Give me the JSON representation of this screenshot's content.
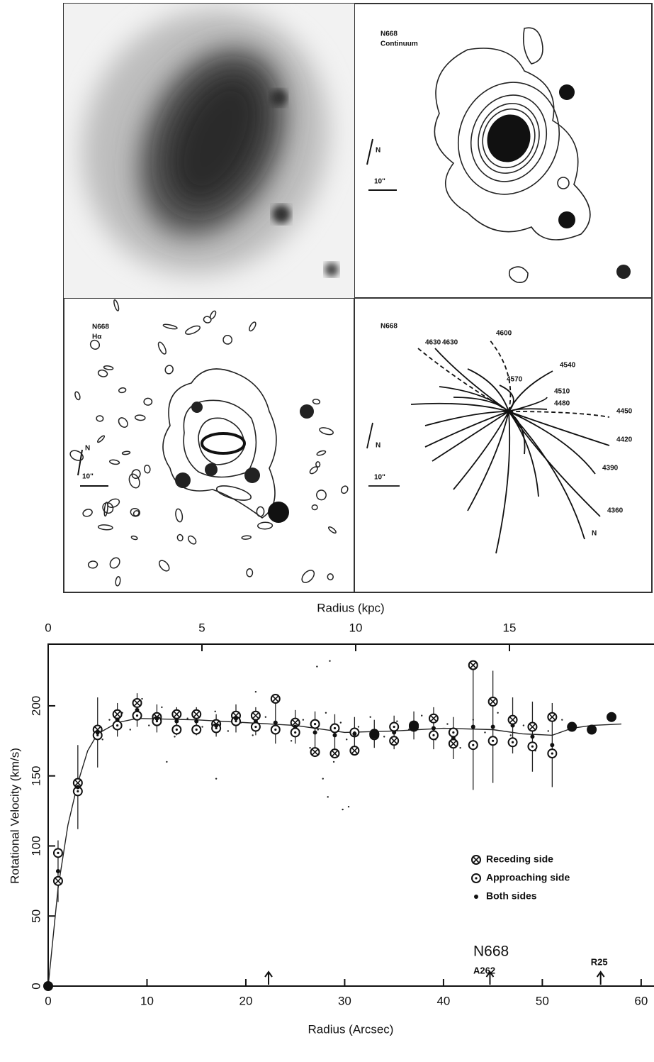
{
  "panels": [
    {
      "labels": []
    },
    {
      "labels": [
        "N668",
        "Continuum",
        "N",
        "10\""
      ]
    },
    {
      "labels": [
        "N668",
        "Hα",
        "N",
        "10\""
      ]
    },
    {
      "labels": [
        "N668",
        "4630",
        "4600",
        "4630",
        "4570",
        "4540",
        "4510",
        "4480",
        "4450",
        "4420",
        "4390",
        "4360",
        "N",
        "10\""
      ]
    }
  ],
  "chart_data": {
    "type": "scatter",
    "xlabel": "Radius (Arcsec)",
    "x2label": "Radius (kpc)",
    "ylabel": "Rotational Velocity (km/s)",
    "xlim": [
      0,
      61.3
    ],
    "xticks": [
      0,
      10,
      20,
      30,
      40,
      50,
      60
    ],
    "x2lim": [
      0,
      19.7
    ],
    "x2ticks": [
      0,
      5,
      10,
      15
    ],
    "ylim": [
      0,
      244
    ],
    "yticks": [
      0,
      50,
      100,
      150,
      200
    ],
    "annotations": [
      "N668",
      "A262",
      "R25"
    ],
    "markers_x": [
      22.3,
      44.7,
      55.9
    ],
    "series": [
      {
        "name": "Receding side",
        "x": [
          1,
          3,
          5,
          7,
          9,
          11,
          13,
          15,
          17,
          19,
          21,
          23,
          25,
          27,
          29,
          31,
          33,
          35,
          37,
          39,
          41,
          43,
          45,
          47,
          49,
          51
        ],
        "values": [
          75,
          145,
          183,
          194,
          202,
          192,
          194,
          194,
          187,
          193,
          193,
          205,
          188,
          167,
          166,
          168,
          180,
          175,
          186,
          191,
          173,
          229,
          203,
          190,
          185,
          192
        ]
      },
      {
        "name": "Approaching side",
        "x": [
          1,
          3,
          5,
          7,
          9,
          11,
          13,
          15,
          17,
          19,
          21,
          23,
          25,
          27,
          29,
          31,
          33,
          35,
          37,
          39,
          41,
          43,
          45,
          47,
          49,
          51
        ],
        "values": [
          95,
          139,
          179,
          186,
          193,
          189,
          183,
          183,
          184,
          189,
          185,
          183,
          181,
          187,
          184,
          181,
          179,
          185,
          185,
          179,
          181,
          172,
          175,
          174,
          171,
          166
        ]
      },
      {
        "name": "Both sides",
        "x": [
          1,
          3,
          5,
          7,
          9,
          11,
          13,
          15,
          17,
          19,
          21,
          23,
          25,
          27,
          29,
          31,
          33,
          35,
          37,
          39,
          41,
          43,
          45,
          47,
          49,
          51
        ],
        "values": [
          82,
          142,
          181,
          190,
          197,
          191,
          189,
          189,
          186,
          191,
          189,
          188,
          185,
          181,
          179,
          180,
          180,
          181,
          186,
          184,
          177,
          185,
          185,
          186,
          178,
          172
        ],
        "errors": [
          22,
          30,
          25,
          12,
          12,
          10,
          10,
          10,
          8,
          10,
          10,
          15,
          12,
          15,
          15,
          12,
          10,
          12,
          10,
          15,
          15,
          45,
          40,
          20,
          25,
          30
        ]
      }
    ],
    "large_points": {
      "x": [
        0,
        33,
        37,
        53,
        55,
        57
      ],
      "y": [
        0,
        180,
        186,
        185,
        183,
        192
      ]
    },
    "curve": {
      "x": [
        0,
        1,
        2,
        3,
        4,
        5,
        7,
        9,
        15,
        20,
        25,
        30,
        35,
        40,
        45,
        48,
        51,
        53,
        55,
        58
      ],
      "y": [
        0,
        70,
        115,
        145,
        168,
        180,
        188,
        191,
        190,
        188,
        186,
        181,
        182,
        184,
        183,
        180,
        179,
        184,
        186,
        187
      ]
    },
    "points": {
      "x": [
        5.5,
        6.2,
        7.5,
        8.3,
        10.2,
        11.5,
        12.8,
        14.1,
        15.6,
        16.9,
        18.2,
        19.5,
        20.7,
        22,
        23.4,
        24.6,
        25.8,
        26.5,
        27.3,
        28.1,
        28.9,
        29.6,
        30.2,
        31.4,
        32.6,
        34,
        35.3,
        36.5,
        37.8,
        39.2,
        40.4,
        41.7,
        43,
        44.2,
        45.5,
        46.8,
        48.1,
        49.3,
        50.6,
        52,
        28.5,
        27.2,
        29.8,
        28.3,
        30.4,
        27.8,
        12,
        17,
        9.5,
        21
      ],
      "y": [
        176,
        190,
        195,
        183,
        186,
        199,
        178,
        191,
        185,
        196,
        182,
        188,
        179,
        192,
        184,
        175,
        190,
        170,
        183,
        195,
        160,
        188,
        176,
        185,
        192,
        178,
        189,
        183,
        193,
        176,
        187,
        170,
        190,
        181,
        195,
        179,
        186,
        168,
        182,
        190,
        232,
        228,
        126,
        135,
        128,
        148,
        160,
        148,
        205,
        210
      ]
    }
  }
}
